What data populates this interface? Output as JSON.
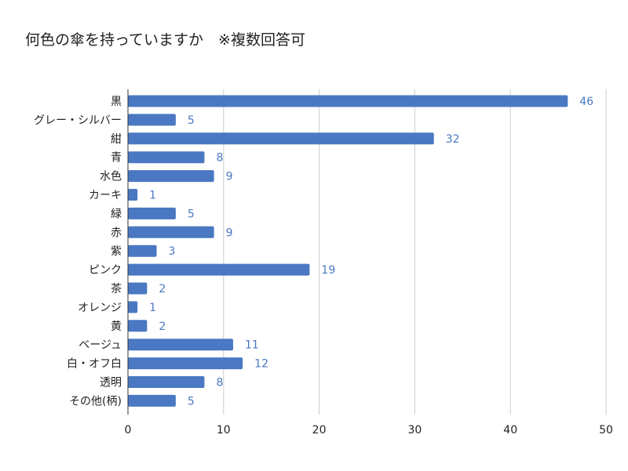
{
  "chart_data": {
    "type": "bar",
    "orientation": "horizontal",
    "title": "何色の傘を持っていますか　※複数回答可",
    "xlabel": "",
    "ylabel": "",
    "categories": [
      "黒",
      "グレー・シルバー",
      "紺",
      "青",
      "水色",
      "カーキ",
      "緑",
      "赤",
      "紫",
      "ピンク",
      "茶",
      "オレンジ",
      "黄",
      "ベージュ",
      "白・オフ白",
      "透明",
      "その他(柄)"
    ],
    "values": [
      46,
      5,
      32,
      8,
      9,
      1,
      5,
      9,
      3,
      19,
      2,
      1,
      2,
      11,
      12,
      8,
      5
    ],
    "xlim": [
      0,
      50
    ],
    "xticks": [
      0,
      10,
      20,
      30,
      40,
      50
    ],
    "grid": true,
    "data_labels": true,
    "legend": "none"
  },
  "colors": {
    "bar": "#4a78c2",
    "value_label": "#4a78c2",
    "grid": "#cccccc",
    "axis": "#333333"
  }
}
